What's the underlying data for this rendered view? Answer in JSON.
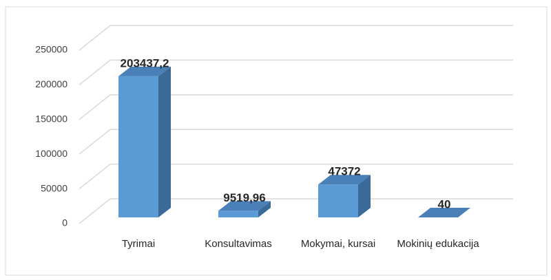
{
  "chart_data": {
    "type": "bar",
    "categories": [
      "Tyrimai",
      "Konsultavimas",
      "Mokymai, kursai",
      "Mokinių edukacija"
    ],
    "values": [
      203437.2,
      9519.96,
      47372,
      40
    ],
    "value_labels": [
      "203437,2",
      "9519,96",
      "47372",
      "40"
    ],
    "color": "#5b9bd5",
    "ylim": [
      0,
      250000
    ],
    "yticks": [
      0,
      50000,
      100000,
      150000,
      200000,
      250000
    ],
    "grid": true
  }
}
